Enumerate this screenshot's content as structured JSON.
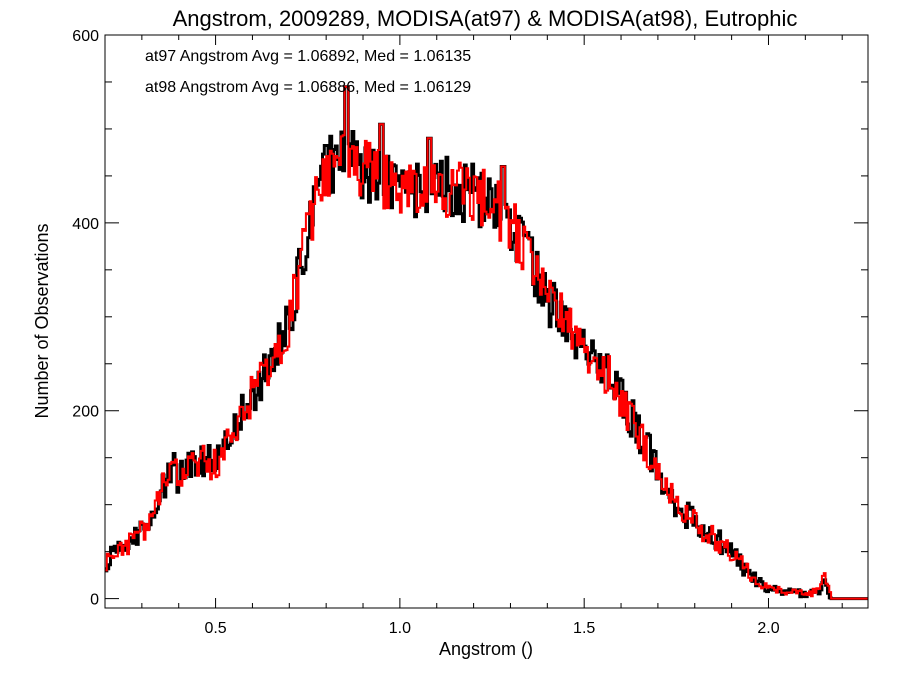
{
  "chart_data": {
    "type": "histogram-step",
    "title": "Angstrom, 2009289, MODISA(at97) & MODISA(at98), Eutrophic",
    "xlabel": "Angstrom ()",
    "ylabel": "Number of Observations",
    "xlim": [
      0.2,
      2.27
    ],
    "ylim": [
      -10,
      600
    ],
    "xticks": [
      0.5,
      1.0,
      1.5,
      2.0
    ],
    "xtick_labels": [
      "0.5",
      "1.0",
      "1.5",
      "2.0"
    ],
    "yticks": [
      0,
      200,
      400,
      600
    ],
    "ytick_labels": [
      "0",
      "200",
      "400",
      "600"
    ],
    "x_minor_step": 0.1,
    "y_minor_step": 50,
    "bin_width": 0.005,
    "series": [
      {
        "name": "at97",
        "color": "#000000",
        "annotation": "at97 Angstrom Avg = 1.06892, Med = 1.06135",
        "keypoints": [
          [
            0.2,
            20
          ],
          [
            0.21,
            45
          ],
          [
            0.25,
            55
          ],
          [
            0.28,
            65
          ],
          [
            0.32,
            80
          ],
          [
            0.35,
            110
          ],
          [
            0.38,
            140
          ],
          [
            0.4,
            130
          ],
          [
            0.44,
            150
          ],
          [
            0.48,
            148
          ],
          [
            0.5,
            140
          ],
          [
            0.55,
            180
          ],
          [
            0.6,
            215
          ],
          [
            0.65,
            250
          ],
          [
            0.7,
            295
          ],
          [
            0.72,
            330
          ],
          [
            0.75,
            390
          ],
          [
            0.78,
            430
          ],
          [
            0.8,
            460
          ],
          [
            0.85,
            470
          ],
          [
            0.9,
            455
          ],
          [
            0.95,
            450
          ],
          [
            1.0,
            440
          ],
          [
            1.05,
            430
          ],
          [
            1.1,
            440
          ],
          [
            1.15,
            435
          ],
          [
            1.2,
            430
          ],
          [
            1.25,
            420
          ],
          [
            1.3,
            400
          ],
          [
            1.35,
            360
          ],
          [
            1.4,
            320
          ],
          [
            1.45,
            295
          ],
          [
            1.5,
            270
          ],
          [
            1.55,
            245
          ],
          [
            1.6,
            215
          ],
          [
            1.65,
            175
          ],
          [
            1.7,
            140
          ],
          [
            1.75,
            100
          ],
          [
            1.8,
            80
          ],
          [
            1.85,
            65
          ],
          [
            1.9,
            50
          ],
          [
            1.95,
            25
          ],
          [
            2.0,
            10
          ],
          [
            2.05,
            7
          ],
          [
            2.1,
            5
          ],
          [
            2.14,
            8
          ],
          [
            2.15,
            20
          ],
          [
            2.17,
            0
          ],
          [
            2.27,
            0
          ]
        ],
        "spikes": [
          [
            0.855,
            545
          ],
          [
            0.95,
            505
          ],
          [
            1.08,
            490
          ],
          [
            1.28,
            460
          ]
        ]
      },
      {
        "name": "at98",
        "color": "#ff0000",
        "annotation": "at98 Angstrom Avg = 1.06886, Med = 1.06129",
        "keypoints": [
          [
            0.2,
            20
          ],
          [
            0.21,
            45
          ],
          [
            0.25,
            55
          ],
          [
            0.28,
            65
          ],
          [
            0.32,
            80
          ],
          [
            0.35,
            110
          ],
          [
            0.38,
            140
          ],
          [
            0.4,
            130
          ],
          [
            0.44,
            150
          ],
          [
            0.48,
            148
          ],
          [
            0.5,
            140
          ],
          [
            0.55,
            180
          ],
          [
            0.6,
            215
          ],
          [
            0.65,
            250
          ],
          [
            0.7,
            295
          ],
          [
            0.72,
            330
          ],
          [
            0.75,
            390
          ],
          [
            0.78,
            430
          ],
          [
            0.8,
            460
          ],
          [
            0.85,
            470
          ],
          [
            0.9,
            455
          ],
          [
            0.95,
            450
          ],
          [
            1.0,
            440
          ],
          [
            1.05,
            430
          ],
          [
            1.1,
            440
          ],
          [
            1.15,
            435
          ],
          [
            1.2,
            430
          ],
          [
            1.25,
            420
          ],
          [
            1.3,
            400
          ],
          [
            1.35,
            360
          ],
          [
            1.4,
            320
          ],
          [
            1.45,
            295
          ],
          [
            1.5,
            270
          ],
          [
            1.55,
            245
          ],
          [
            1.6,
            215
          ],
          [
            1.65,
            175
          ],
          [
            1.7,
            140
          ],
          [
            1.75,
            100
          ],
          [
            1.8,
            80
          ],
          [
            1.85,
            65
          ],
          [
            1.9,
            50
          ],
          [
            1.95,
            25
          ],
          [
            2.0,
            10
          ],
          [
            2.05,
            7
          ],
          [
            2.1,
            5
          ],
          [
            2.14,
            8
          ],
          [
            2.15,
            35
          ],
          [
            2.17,
            0
          ],
          [
            2.27,
            0
          ]
        ],
        "spikes": [
          [
            0.855,
            545
          ],
          [
            0.95,
            505
          ],
          [
            1.08,
            490
          ],
          [
            1.28,
            460
          ]
        ]
      }
    ]
  }
}
